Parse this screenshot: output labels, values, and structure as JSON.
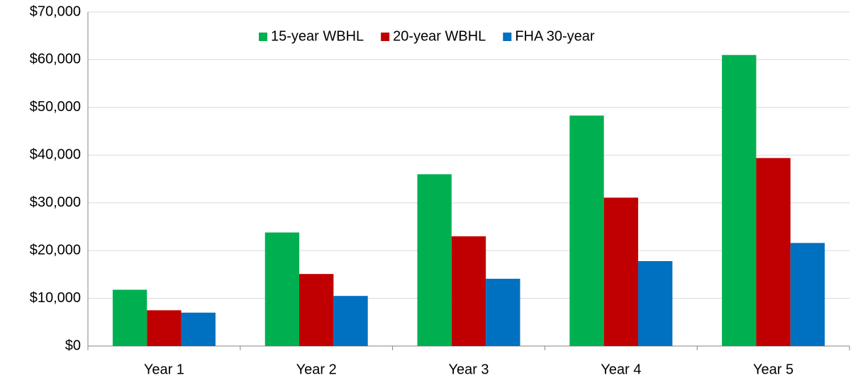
{
  "chart_data": {
    "type": "bar",
    "categories": [
      "Year 1",
      "Year 2",
      "Year 3",
      "Year 4",
      "Year 5"
    ],
    "series": [
      {
        "name": "15-year WBHL",
        "color": "#00b050",
        "values": [
          11800,
          23800,
          36000,
          48300,
          61000
        ]
      },
      {
        "name": "20-year WBHL",
        "color": "#c00000",
        "values": [
          7500,
          15100,
          23000,
          31100,
          39400
        ]
      },
      {
        "name": "FHA 30-year",
        "color": "#0070c0",
        "values": [
          7000,
          10500,
          14100,
          17800,
          21600
        ]
      }
    ],
    "ylim": [
      0,
      70000
    ],
    "yticks": [
      {
        "value": 0,
        "label": "$0"
      },
      {
        "value": 10000,
        "label": "$10,000"
      },
      {
        "value": 20000,
        "label": "$20,000"
      },
      {
        "value": 30000,
        "label": "$30,000"
      },
      {
        "value": 40000,
        "label": "$40,000"
      },
      {
        "value": 50000,
        "label": "$50,000"
      },
      {
        "value": 60000,
        "label": "$60,000"
      },
      {
        "value": 70000,
        "label": "$70,000"
      }
    ],
    "grid": true,
    "legend": "top"
  }
}
